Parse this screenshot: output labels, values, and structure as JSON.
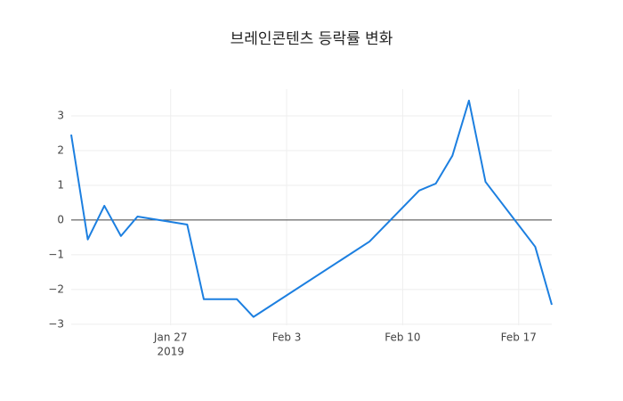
{
  "chart_data": {
    "type": "line",
    "title": "브레인콘텐츠 등락률 변화",
    "x": [
      "2019-01-21",
      "2019-01-22",
      "2019-01-23",
      "2019-01-24",
      "2019-01-25",
      "2019-01-28",
      "2019-01-29",
      "2019-01-30",
      "2019-01-31",
      "2019-02-01",
      "2019-02-08",
      "2019-02-11",
      "2019-02-12",
      "2019-02-13",
      "2019-02-14",
      "2019-02-15",
      "2019-02-18",
      "2019-02-19"
    ],
    "series": [
      {
        "color": "#1c7fe0",
        "values": [
          2.46,
          -0.56,
          0.41,
          -0.46,
          0.1,
          -0.13,
          -2.28,
          -2.28,
          -2.28,
          -2.79,
          -0.62,
          0.85,
          1.05,
          1.85,
          3.44,
          1.1,
          -0.77,
          -2.44
        ]
      }
    ],
    "xlim": [
      "2019-01-21",
      "2019-02-19"
    ],
    "xticks": [
      {
        "value": "2019-01-27",
        "label": "Jan 27"
      },
      {
        "value": "2019-02-03",
        "label": "Feb 3"
      },
      {
        "value": "2019-02-10",
        "label": "Feb 10"
      },
      {
        "value": "2019-02-17",
        "label": "Feb 17"
      }
    ],
    "xtick_year": "2019",
    "ylim": [
      -3.03,
      3.77
    ],
    "yticks": [
      {
        "value": -3,
        "label": "−3"
      },
      {
        "value": -2,
        "label": "−2"
      },
      {
        "value": -1,
        "label": "−1"
      },
      0,
      1,
      2,
      3
    ],
    "grid": true,
    "zeroline": true
  }
}
